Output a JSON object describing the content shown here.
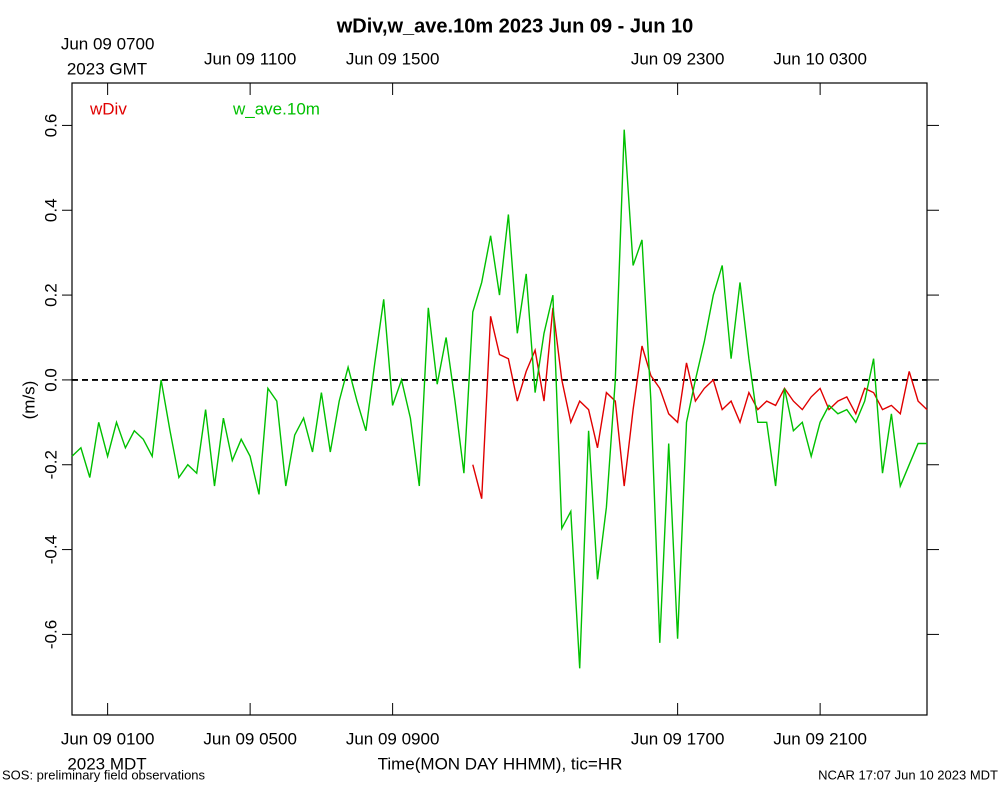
{
  "chart_data": {
    "type": "line",
    "title": "wDiv,w_ave.10m 2023 Jun 09 - Jun 10",
    "y_label": "(m/s)",
    "x_label": "Time(MON DAY HHMM), tic=HR",
    "x_corner_label": "2023 MDT",
    "x2_corner_label": "2023 GMT",
    "footer_left": "SOS: preliminary field observations",
    "footer_right": "NCAR 17:07 Jun 10 2023 MDT",
    "xlim": [
      0,
      24
    ],
    "xticks": [
      {
        "value": 1,
        "label": "Jun 09 0100"
      },
      {
        "value": 5,
        "label": "Jun 09 0500"
      },
      {
        "value": 9,
        "label": "Jun 09 0900"
      },
      {
        "value": 17,
        "label": "Jun 09 1700"
      },
      {
        "value": 21,
        "label": "Jun 09 2100"
      }
    ],
    "x2ticks": [
      {
        "value": 1,
        "label": "Jun 09 0700"
      },
      {
        "value": 5,
        "label": "Jun 09 1100"
      },
      {
        "value": 9,
        "label": "Jun 09 1500"
      },
      {
        "value": 17,
        "label": "Jun 09 2300"
      },
      {
        "value": 21,
        "label": "Jun 10 0300"
      }
    ],
    "ylim": [
      -0.79,
      0.7
    ],
    "yticks": [
      -0.6,
      -0.4,
      -0.2,
      {
        "value": 0,
        "label": "0.0"
      },
      0.2,
      0.4,
      0.6
    ],
    "hline": 0,
    "x": [
      0,
      0.25,
      0.5,
      0.75,
      1,
      1.25,
      1.5,
      1.75,
      2,
      2.25,
      2.5,
      2.75,
      3,
      3.25,
      3.5,
      3.75,
      4,
      4.25,
      4.5,
      4.75,
      5,
      5.25,
      5.5,
      5.75,
      6,
      6.25,
      6.5,
      6.75,
      7,
      7.25,
      7.5,
      7.75,
      8,
      8.25,
      8.5,
      8.75,
      9,
      9.25,
      9.5,
      9.75,
      10,
      10.25,
      10.5,
      10.75,
      11,
      11.25,
      11.5,
      11.75,
      12,
      12.25,
      12.5,
      12.75,
      13,
      13.25,
      13.5,
      13.75,
      14,
      14.25,
      14.5,
      14.75,
      15,
      15.25,
      15.5,
      15.75,
      16,
      16.25,
      16.5,
      16.75,
      17,
      17.25,
      17.5,
      17.75,
      18,
      18.25,
      18.5,
      18.75,
      19,
      19.25,
      19.5,
      19.75,
      20,
      20.25,
      20.5,
      20.75,
      21,
      21.25,
      21.5,
      21.75,
      22,
      22.25,
      22.5,
      22.75,
      23,
      23.25,
      23.5,
      23.75,
      24
    ],
    "series": [
      {
        "name": "wDiv",
        "color": "#e00000",
        "values": [
          null,
          null,
          null,
          null,
          null,
          null,
          null,
          null,
          null,
          null,
          null,
          null,
          null,
          null,
          null,
          null,
          null,
          null,
          null,
          null,
          null,
          null,
          null,
          null,
          null,
          null,
          null,
          null,
          null,
          null,
          null,
          null,
          null,
          null,
          null,
          null,
          null,
          null,
          null,
          null,
          null,
          null,
          null,
          null,
          null,
          -0.2,
          -0.28,
          0.15,
          0.06,
          0.05,
          -0.05,
          0.02,
          0.07,
          -0.05,
          0.17,
          0,
          -0.1,
          -0.05,
          -0.07,
          -0.16,
          -0.03,
          -0.05,
          -0.25,
          -0.07,
          0.08,
          0.01,
          -0.02,
          -0.08,
          -0.1,
          0.04,
          -0.05,
          -0.02,
          0,
          -0.07,
          -0.05,
          -0.1,
          -0.03,
          -0.07,
          -0.05,
          -0.06,
          -0.02,
          -0.05,
          -0.07,
          -0.04,
          -0.02,
          -0.07,
          -0.05,
          -0.04,
          -0.08,
          -0.02,
          -0.03,
          -0.07,
          -0.06,
          -0.08,
          0.02,
          -0.05,
          -0.07
        ]
      },
      {
        "name": "w_ave.10m",
        "color": "#00c000",
        "values": [
          -0.18,
          -0.16,
          -0.23,
          -0.1,
          -0.18,
          -0.1,
          -0.16,
          -0.12,
          -0.14,
          -0.18,
          0,
          -0.12,
          -0.23,
          -0.2,
          -0.22,
          -0.07,
          -0.25,
          -0.09,
          -0.19,
          -0.14,
          -0.18,
          -0.27,
          -0.02,
          -0.05,
          -0.25,
          -0.13,
          -0.09,
          -0.17,
          -0.03,
          -0.17,
          -0.05,
          0.03,
          -0.05,
          -0.12,
          0.04,
          0.19,
          -0.06,
          0,
          -0.09,
          -0.25,
          0.17,
          -0.01,
          0.1,
          -0.05,
          -0.22,
          0.16,
          0.23,
          0.34,
          0.2,
          0.39,
          0.11,
          0.25,
          -0.03,
          0.11,
          0.2,
          -0.35,
          -0.31,
          -0.68,
          -0.12,
          -0.47,
          -0.3,
          0,
          0.59,
          0.27,
          0.33,
          -0.05,
          -0.62,
          -0.15,
          -0.61,
          -0.1,
          0,
          0.09,
          0.2,
          0.27,
          0.05,
          0.23,
          0.05,
          -0.1,
          -0.1,
          -0.25,
          -0.02,
          -0.12,
          -0.1,
          -0.18,
          -0.1,
          -0.06,
          -0.08,
          -0.07,
          -0.1,
          -0.05,
          0.05,
          -0.22,
          -0.08,
          -0.25,
          -0.2,
          -0.15,
          -0.15
        ]
      }
    ]
  }
}
